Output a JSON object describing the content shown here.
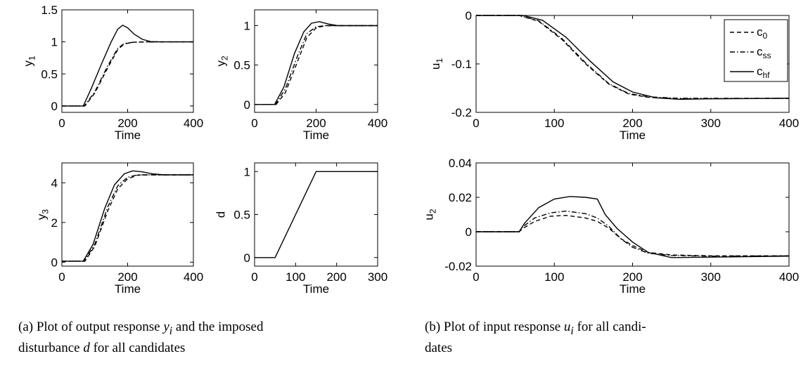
{
  "captions": {
    "a": {
      "pre": "(a) Plot of output response ",
      "var1": "y",
      "sub1": "i",
      "mid": " and the imposed",
      "line2_pre": "disturbance ",
      "var2": "d",
      "line2_post": " for all candidates"
    },
    "b": {
      "pre": "(b) Plot of input response ",
      "var1": "u",
      "sub1": "i",
      "line1_post": " for all candi-",
      "line2": "dates"
    }
  },
  "legend": [
    {
      "base": "c",
      "sub": "0",
      "style": "dashed"
    },
    {
      "base": "c",
      "sub": "ss",
      "style": "dashdot"
    },
    {
      "base": "c",
      "sub": "hf",
      "style": "solid"
    }
  ],
  "chart_data": [
    {
      "id": "y1",
      "type": "line",
      "xlabel": "Time",
      "ylabel": {
        "base": "y",
        "sub": "1"
      },
      "xlim": [
        0,
        400
      ],
      "ylim": [
        -0.1,
        1.5
      ],
      "xticks": [
        0,
        200,
        400
      ],
      "yticks": [
        0,
        0.5,
        1,
        1.5
      ],
      "xtick_labels": [
        "0",
        "200",
        "400"
      ],
      "ytick_labels": [
        "0",
        "0.5",
        "1",
        "1.5"
      ],
      "series": [
        {
          "key": "c0",
          "style": "dashed",
          "points": [
            [
              0,
              0
            ],
            [
              70,
              0
            ],
            [
              100,
              0.2
            ],
            [
              140,
              0.6
            ],
            [
              170,
              0.88
            ],
            [
              190,
              0.97
            ],
            [
              220,
              0.995
            ],
            [
              260,
              1.0
            ],
            [
              400,
              1.0
            ]
          ]
        },
        {
          "key": "css",
          "style": "dashdot",
          "points": [
            [
              0,
              0
            ],
            [
              68,
              0
            ],
            [
              100,
              0.22
            ],
            [
              140,
              0.63
            ],
            [
              170,
              0.9
            ],
            [
              190,
              0.975
            ],
            [
              220,
              0.997
            ],
            [
              400,
              1.0
            ]
          ]
        },
        {
          "key": "chf",
          "style": "solid",
          "points": [
            [
              0,
              0
            ],
            [
              65,
              0
            ],
            [
              90,
              0.28
            ],
            [
              120,
              0.65
            ],
            [
              150,
              1.0
            ],
            [
              170,
              1.2
            ],
            [
              185,
              1.26
            ],
            [
              200,
              1.22
            ],
            [
              220,
              1.12
            ],
            [
              245,
              1.04
            ],
            [
              270,
              1.005
            ],
            [
              300,
              1.0
            ],
            [
              400,
              1.0
            ]
          ]
        }
      ]
    },
    {
      "id": "y2",
      "type": "line",
      "xlabel": "Time",
      "ylabel": {
        "base": "y",
        "sub": "2"
      },
      "xlim": [
        0,
        400
      ],
      "ylim": [
        -0.1,
        1.2
      ],
      "xticks": [
        0,
        200,
        400
      ],
      "yticks": [
        0,
        0.5,
        1
      ],
      "xtick_labels": [
        "0",
        "200",
        "400"
      ],
      "ytick_labels": [
        "0",
        "0.5",
        "1"
      ],
      "series": [
        {
          "key": "c0",
          "style": "dashed",
          "points": [
            [
              0,
              0
            ],
            [
              70,
              0
            ],
            [
              100,
              0.15
            ],
            [
              140,
              0.55
            ],
            [
              170,
              0.85
            ],
            [
              200,
              0.97
            ],
            [
              230,
              1.0
            ],
            [
              400,
              1.0
            ]
          ]
        },
        {
          "key": "css",
          "style": "dashdot",
          "points": [
            [
              0,
              0
            ],
            [
              68,
              0
            ],
            [
              100,
              0.2
            ],
            [
              140,
              0.62
            ],
            [
              170,
              0.9
            ],
            [
              200,
              0.985
            ],
            [
              230,
              1.0
            ],
            [
              400,
              1.0
            ]
          ]
        },
        {
          "key": "chf",
          "style": "solid",
          "points": [
            [
              0,
              0
            ],
            [
              65,
              0
            ],
            [
              95,
              0.22
            ],
            [
              130,
              0.65
            ],
            [
              160,
              0.92
            ],
            [
              185,
              1.03
            ],
            [
              210,
              1.05
            ],
            [
              240,
              1.02
            ],
            [
              270,
              1.0
            ],
            [
              400,
              1.0
            ]
          ]
        }
      ]
    },
    {
      "id": "u1",
      "type": "line",
      "xlabel": "Time",
      "ylabel": {
        "base": "u",
        "sub": "1"
      },
      "xlim": [
        0,
        400
      ],
      "ylim": [
        -0.2,
        0
      ],
      "xticks": [
        0,
        100,
        200,
        300,
        400
      ],
      "yticks": [
        -0.2,
        -0.1,
        0
      ],
      "xtick_labels": [
        "0",
        "100",
        "200",
        "300",
        "400"
      ],
      "ytick_labels": [
        "-0.2",
        "-0.1",
        "0"
      ],
      "series": [
        {
          "key": "c0",
          "style": "dashed",
          "points": [
            [
              0,
              0
            ],
            [
              55,
              0
            ],
            [
              80,
              -0.012
            ],
            [
              110,
              -0.05
            ],
            [
              140,
              -0.1
            ],
            [
              170,
              -0.142
            ],
            [
              195,
              -0.162
            ],
            [
              220,
              -0.169
            ],
            [
              260,
              -0.172
            ],
            [
              400,
              -0.171
            ]
          ]
        },
        {
          "key": "css",
          "style": "dashdot",
          "points": [
            [
              0,
              0
            ],
            [
              55,
              0
            ],
            [
              80,
              -0.011
            ],
            [
              110,
              -0.048
            ],
            [
              140,
              -0.098
            ],
            [
              170,
              -0.141
            ],
            [
              195,
              -0.161
            ],
            [
              220,
              -0.168
            ],
            [
              260,
              -0.171
            ],
            [
              400,
              -0.171
            ]
          ]
        },
        {
          "key": "chf",
          "style": "solid",
          "points": [
            [
              0,
              0
            ],
            [
              60,
              0
            ],
            [
              85,
              -0.01
            ],
            [
              115,
              -0.045
            ],
            [
              145,
              -0.093
            ],
            [
              175,
              -0.137
            ],
            [
              200,
              -0.158
            ],
            [
              230,
              -0.17
            ],
            [
              260,
              -0.173
            ],
            [
              300,
              -0.172
            ],
            [
              400,
              -0.171
            ]
          ]
        }
      ]
    },
    {
      "id": "y3",
      "type": "line",
      "xlabel": "Time",
      "ylabel": {
        "base": "y",
        "sub": "3"
      },
      "xlim": [
        0,
        400
      ],
      "ylim": [
        -0.2,
        5
      ],
      "xticks": [
        0,
        200,
        400
      ],
      "yticks": [
        0,
        2,
        4
      ],
      "xtick_labels": [
        "0",
        "200",
        "400"
      ],
      "ytick_labels": [
        "0",
        "2",
        "4"
      ],
      "series": [
        {
          "key": "c0",
          "style": "dashed",
          "points": [
            [
              0,
              0.05
            ],
            [
              70,
              0.05
            ],
            [
              100,
              0.8
            ],
            [
              140,
              2.6
            ],
            [
              170,
              3.7
            ],
            [
              200,
              4.2
            ],
            [
              230,
              4.38
            ],
            [
              260,
              4.4
            ],
            [
              400,
              4.4
            ]
          ]
        },
        {
          "key": "css",
          "style": "dashdot",
          "points": [
            [
              0,
              0.05
            ],
            [
              68,
              0.05
            ],
            [
              100,
              0.9
            ],
            [
              140,
              2.8
            ],
            [
              170,
              3.85
            ],
            [
              200,
              4.28
            ],
            [
              230,
              4.4
            ],
            [
              400,
              4.4
            ]
          ]
        },
        {
          "key": "chf",
          "style": "solid",
          "points": [
            [
              0,
              0.05
            ],
            [
              65,
              0.05
            ],
            [
              95,
              0.9
            ],
            [
              130,
              2.7
            ],
            [
              160,
              3.9
            ],
            [
              190,
              4.45
            ],
            [
              215,
              4.6
            ],
            [
              245,
              4.55
            ],
            [
              275,
              4.45
            ],
            [
              310,
              4.4
            ],
            [
              400,
              4.4
            ]
          ]
        }
      ]
    },
    {
      "id": "d",
      "type": "line",
      "xlabel": "Time",
      "ylabel": {
        "base": "d",
        "sub": ""
      },
      "xlim": [
        0,
        300
      ],
      "ylim": [
        -0.1,
        1.1
      ],
      "xticks": [
        0,
        100,
        200,
        300
      ],
      "yticks": [
        0,
        0.5,
        1
      ],
      "xtick_labels": [
        "0",
        "100",
        "200",
        "300"
      ],
      "ytick_labels": [
        "0",
        "0.5",
        "1"
      ],
      "series": [
        {
          "key": "d",
          "style": "solid",
          "points": [
            [
              0,
              0
            ],
            [
              50,
              0
            ],
            [
              150,
              1
            ],
            [
              300,
              1
            ]
          ]
        }
      ]
    },
    {
      "id": "u2",
      "type": "line",
      "xlabel": "Time",
      "ylabel": {
        "base": "u",
        "sub": "2"
      },
      "xlim": [
        0,
        400
      ],
      "ylim": [
        -0.02,
        0.04
      ],
      "xticks": [
        0,
        100,
        200,
        300,
        400
      ],
      "yticks": [
        -0.02,
        0,
        0.02,
        0.04
      ],
      "xtick_labels": [
        "0",
        "100",
        "200",
        "300",
        "400"
      ],
      "ytick_labels": [
        "-0.02",
        "0",
        "0.02",
        "0.04"
      ],
      "series": [
        {
          "key": "c0",
          "style": "dashed",
          "points": [
            [
              0,
              0
            ],
            [
              55,
              0
            ],
            [
              60,
              0.002
            ],
            [
              75,
              0.006
            ],
            [
              95,
              0.009
            ],
            [
              115,
              0.0095
            ],
            [
              140,
              0.008
            ],
            [
              155,
              0.006
            ],
            [
              170,
              0.002
            ],
            [
              185,
              -0.004
            ],
            [
              200,
              -0.008
            ],
            [
              220,
              -0.012
            ],
            [
              250,
              -0.0135
            ],
            [
              300,
              -0.014
            ],
            [
              400,
              -0.014
            ]
          ]
        },
        {
          "key": "css",
          "style": "dashdot",
          "points": [
            [
              0,
              0
            ],
            [
              55,
              0
            ],
            [
              60,
              0.003
            ],
            [
              75,
              0.008
            ],
            [
              95,
              0.011
            ],
            [
              115,
              0.012
            ],
            [
              140,
              0.0105
            ],
            [
              155,
              0.008
            ],
            [
              170,
              0.003
            ],
            [
              185,
              -0.004
            ],
            [
              200,
              -0.009
            ],
            [
              220,
              -0.0125
            ],
            [
              250,
              -0.0138
            ],
            [
              300,
              -0.0142
            ],
            [
              400,
              -0.014
            ]
          ]
        },
        {
          "key": "chf",
          "style": "solid",
          "points": [
            [
              0,
              0
            ],
            [
              55,
              0
            ],
            [
              62,
              0.005
            ],
            [
              80,
              0.014
            ],
            [
              100,
              0.019
            ],
            [
              120,
              0.0205
            ],
            [
              140,
              0.02
            ],
            [
              155,
              0.019
            ],
            [
              165,
              0.01
            ],
            [
              180,
              0.002
            ],
            [
              200,
              -0.006
            ],
            [
              220,
              -0.012
            ],
            [
              250,
              -0.015
            ],
            [
              290,
              -0.0148
            ],
            [
              400,
              -0.0142
            ]
          ]
        }
      ]
    }
  ]
}
